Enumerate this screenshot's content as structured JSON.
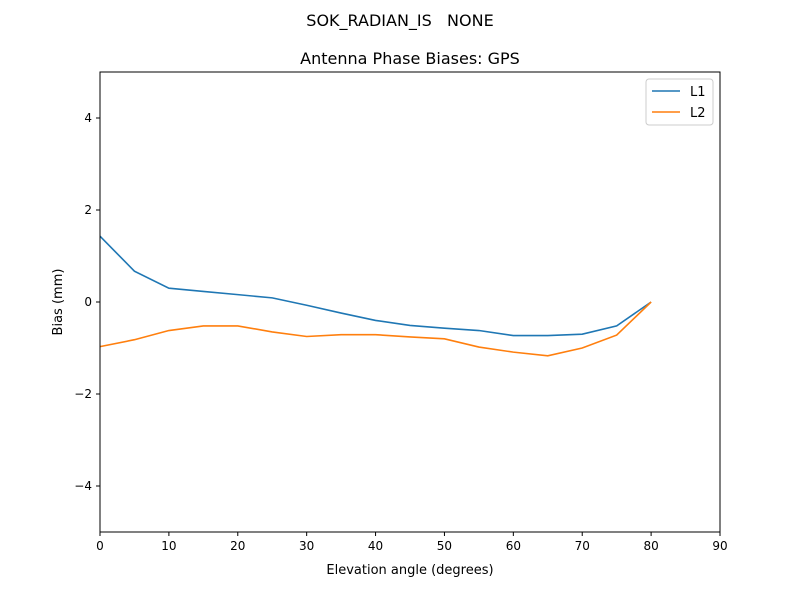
{
  "chart_data": {
    "type": "line",
    "suptitle": "SOK_RADIAN_IS   NONE",
    "title": "Antenna Phase Biases: GPS",
    "xlabel": "Elevation angle (degrees)",
    "ylabel": "Bias (mm)",
    "xlim": [
      0,
      90
    ],
    "ylim": [
      -5,
      5
    ],
    "xticks": [
      0,
      10,
      20,
      30,
      40,
      50,
      60,
      70,
      80,
      90
    ],
    "yticks": [
      -4,
      -2,
      0,
      2,
      4
    ],
    "ytick_labels": [
      "−4",
      "−2",
      "0",
      "2",
      "4"
    ],
    "grid": false,
    "legend_position": "top-right",
    "x": [
      0,
      5,
      10,
      15,
      20,
      25,
      30,
      35,
      40,
      45,
      50,
      55,
      60,
      65,
      70,
      75,
      80
    ],
    "series": [
      {
        "name": "L1",
        "color": "#1f77b4",
        "values": [
          1.43,
          0.67,
          0.3,
          0.23,
          0.16,
          0.09,
          -0.07,
          -0.24,
          -0.4,
          -0.51,
          -0.57,
          -0.62,
          -0.73,
          -0.73,
          -0.7,
          -0.52,
          0.0
        ]
      },
      {
        "name": "L2",
        "color": "#ff7f0e",
        "values": [
          -0.97,
          -0.82,
          -0.62,
          -0.52,
          -0.52,
          -0.65,
          -0.75,
          -0.71,
          -0.71,
          -0.76,
          -0.8,
          -0.98,
          -1.09,
          -1.17,
          -1.0,
          -0.72,
          0.0
        ]
      }
    ]
  }
}
